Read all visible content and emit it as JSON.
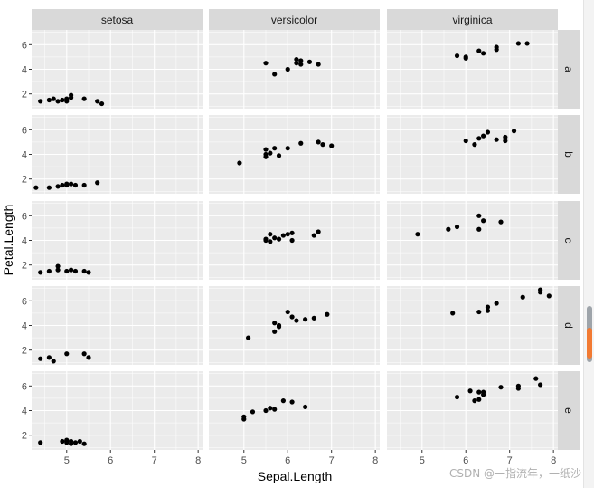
{
  "chart_data": {
    "type": "scatter",
    "facet_columns": [
      "setosa",
      "versicolor",
      "virginica"
    ],
    "facet_rows": [
      "a",
      "b",
      "c",
      "d",
      "e"
    ],
    "xlabel": "Sepal.Length",
    "ylabel": "Petal.Length",
    "xlim": [
      4.2,
      8.1
    ],
    "ylim": [
      0.8,
      7.2
    ],
    "xticks": [
      5,
      6,
      7,
      8
    ],
    "yticks": [
      2,
      4,
      6
    ],
    "grid": true,
    "panels": [
      {
        "row": "a",
        "col": "setosa",
        "points": [
          [
            4.4,
            1.4
          ],
          [
            4.6,
            1.5
          ],
          [
            4.7,
            1.6
          ],
          [
            4.8,
            1.4
          ],
          [
            4.9,
            1.5
          ],
          [
            5.0,
            1.4
          ],
          [
            5.1,
            1.7
          ],
          [
            5.1,
            1.9
          ],
          [
            5.4,
            1.6
          ],
          [
            5.7,
            1.4
          ],
          [
            5.8,
            1.2
          ],
          [
            5.0,
            1.6
          ]
        ]
      },
      {
        "row": "a",
        "col": "versicolor",
        "points": [
          [
            5.5,
            4.5
          ],
          [
            5.7,
            3.6
          ],
          [
            6.0,
            4.0
          ],
          [
            6.2,
            4.5
          ],
          [
            6.3,
            4.7
          ],
          [
            6.3,
            4.4
          ],
          [
            6.5,
            4.6
          ],
          [
            6.7,
            4.4
          ],
          [
            6.2,
            4.8
          ]
        ]
      },
      {
        "row": "a",
        "col": "virginica",
        "points": [
          [
            5.8,
            5.1
          ],
          [
            6.0,
            4.9
          ],
          [
            6.0,
            5.0
          ],
          [
            6.3,
            5.5
          ],
          [
            6.4,
            5.3
          ],
          [
            6.7,
            5.6
          ],
          [
            6.7,
            5.8
          ],
          [
            7.2,
            6.1
          ],
          [
            7.4,
            6.1
          ]
        ]
      },
      {
        "row": "b",
        "col": "setosa",
        "points": [
          [
            4.3,
            1.3
          ],
          [
            4.6,
            1.3
          ],
          [
            4.8,
            1.4
          ],
          [
            4.9,
            1.5
          ],
          [
            5.0,
            1.6
          ],
          [
            5.0,
            1.5
          ],
          [
            5.1,
            1.6
          ],
          [
            5.2,
            1.5
          ],
          [
            5.4,
            1.5
          ],
          [
            5.7,
            1.7
          ]
        ]
      },
      {
        "row": "b",
        "col": "versicolor",
        "points": [
          [
            4.9,
            3.3
          ],
          [
            5.5,
            3.8
          ],
          [
            5.5,
            4.0
          ],
          [
            5.5,
            4.4
          ],
          [
            5.7,
            4.5
          ],
          [
            5.8,
            3.9
          ],
          [
            6.0,
            4.5
          ],
          [
            6.3,
            4.9
          ],
          [
            6.7,
            5.0
          ],
          [
            6.8,
            4.8
          ],
          [
            7.0,
            4.7
          ],
          [
            5.6,
            4.1
          ]
        ]
      },
      {
        "row": "b",
        "col": "virginica",
        "points": [
          [
            6.0,
            5.1
          ],
          [
            6.2,
            4.8
          ],
          [
            6.3,
            5.3
          ],
          [
            6.4,
            5.5
          ],
          [
            6.5,
            5.8
          ],
          [
            6.7,
            5.2
          ],
          [
            6.9,
            5.1
          ],
          [
            6.9,
            5.4
          ],
          [
            7.1,
            5.9
          ]
        ]
      },
      {
        "row": "c",
        "col": "setosa",
        "points": [
          [
            4.4,
            1.4
          ],
          [
            4.6,
            1.5
          ],
          [
            4.8,
            1.6
          ],
          [
            4.8,
            1.9
          ],
          [
            5.0,
            1.5
          ],
          [
            5.1,
            1.6
          ],
          [
            5.2,
            1.5
          ],
          [
            5.4,
            1.5
          ],
          [
            5.5,
            1.4
          ]
        ]
      },
      {
        "row": "c",
        "col": "versicolor",
        "points": [
          [
            5.5,
            4.0
          ],
          [
            5.5,
            4.1
          ],
          [
            5.6,
            4.5
          ],
          [
            5.6,
            3.9
          ],
          [
            5.7,
            4.2
          ],
          [
            5.8,
            4.1
          ],
          [
            5.9,
            4.4
          ],
          [
            6.0,
            4.5
          ],
          [
            6.1,
            4.6
          ],
          [
            6.1,
            4.0
          ],
          [
            6.6,
            4.4
          ],
          [
            6.7,
            4.7
          ]
        ]
      },
      {
        "row": "c",
        "col": "virginica",
        "points": [
          [
            4.9,
            4.5
          ],
          [
            5.6,
            4.9
          ],
          [
            5.8,
            5.1
          ],
          [
            6.3,
            4.9
          ],
          [
            6.3,
            6.0
          ],
          [
            6.4,
            5.6
          ],
          [
            6.8,
            5.5
          ]
        ]
      },
      {
        "row": "d",
        "col": "setosa",
        "points": [
          [
            4.4,
            1.3
          ],
          [
            4.6,
            1.4
          ],
          [
            4.7,
            1.1
          ],
          [
            5.0,
            1.7
          ],
          [
            5.4,
            1.7
          ],
          [
            5.5,
            1.4
          ]
        ]
      },
      {
        "row": "d",
        "col": "versicolor",
        "points": [
          [
            5.1,
            3.0
          ],
          [
            5.7,
            3.5
          ],
          [
            5.7,
            4.2
          ],
          [
            5.8,
            4.0
          ],
          [
            5.8,
            3.9
          ],
          [
            6.0,
            5.1
          ],
          [
            6.1,
            4.7
          ],
          [
            6.2,
            4.4
          ],
          [
            6.4,
            4.5
          ],
          [
            6.6,
            4.6
          ],
          [
            6.9,
            4.9
          ]
        ]
      },
      {
        "row": "d",
        "col": "virginica",
        "points": [
          [
            5.7,
            5.0
          ],
          [
            6.3,
            5.1
          ],
          [
            6.5,
            5.2
          ],
          [
            6.5,
            5.5
          ],
          [
            6.7,
            5.8
          ],
          [
            7.3,
            6.3
          ],
          [
            7.7,
            6.7
          ],
          [
            7.7,
            6.9
          ],
          [
            7.9,
            6.4
          ]
        ]
      },
      {
        "row": "e",
        "col": "setosa",
        "points": [
          [
            4.4,
            1.4
          ],
          [
            4.9,
            1.5
          ],
          [
            5.0,
            1.4
          ],
          [
            5.0,
            1.6
          ],
          [
            5.1,
            1.5
          ],
          [
            5.1,
            1.3
          ],
          [
            5.2,
            1.4
          ],
          [
            5.3,
            1.5
          ],
          [
            5.4,
            1.3
          ]
        ]
      },
      {
        "row": "e",
        "col": "versicolor",
        "points": [
          [
            5.0,
            3.3
          ],
          [
            5.0,
            3.5
          ],
          [
            5.2,
            3.9
          ],
          [
            5.5,
            4.0
          ],
          [
            5.6,
            4.2
          ],
          [
            5.7,
            4.1
          ],
          [
            5.9,
            4.8
          ],
          [
            6.1,
            4.7
          ],
          [
            6.4,
            4.3
          ]
        ]
      },
      {
        "row": "e",
        "col": "virginica",
        "points": [
          [
            5.8,
            5.1
          ],
          [
            6.1,
            5.6
          ],
          [
            6.2,
            4.8
          ],
          [
            6.3,
            4.9
          ],
          [
            6.3,
            5.5
          ],
          [
            6.4,
            5.3
          ],
          [
            6.4,
            5.5
          ],
          [
            6.8,
            5.9
          ],
          [
            7.2,
            5.8
          ],
          [
            7.2,
            6.0
          ],
          [
            7.6,
            6.6
          ],
          [
            7.7,
            6.1
          ]
        ]
      }
    ]
  },
  "watermark": "CSDN @一指流年，一纸沙",
  "colors": {
    "panel_bg": "#ebebeb",
    "strip_bg": "#d9d9d9",
    "grid_major": "#ffffff",
    "point": "#000000",
    "tick_text": "#4d4d4d"
  },
  "scrollbar": {
    "visible": true
  }
}
